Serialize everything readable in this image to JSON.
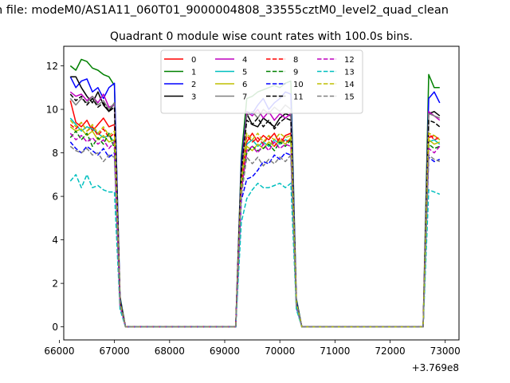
{
  "figure": {
    "suptitle": "n file: modeM0/AS1A11_060T01_9000004808_33555cztM0_level2_quad_clean"
  },
  "chart_data": {
    "type": "line",
    "title": "Quadrant 0 module wise count rates with 100.0s bins.",
    "xlabel": "",
    "ylabel": "",
    "x_offset_label": "+3.769e8",
    "xlim": [
      66080,
      73250
    ],
    "ylim": [
      -0.6,
      12.9
    ],
    "x_ticks": [
      66000,
      67000,
      68000,
      69000,
      70000,
      71000,
      72000,
      73000
    ],
    "y_ticks": [
      0,
      2,
      4,
      6,
      8,
      10,
      12
    ],
    "grid": false,
    "legend": {
      "placement": "top-center",
      "ncol": 4
    },
    "x": [
      66200,
      66300,
      66400,
      66500,
      66600,
      66700,
      66800,
      66900,
      67000,
      67100,
      67200,
      67300,
      67400,
      67500,
      67600,
      67700,
      67800,
      67900,
      68000,
      68100,
      68200,
      68300,
      68400,
      68500,
      68600,
      68700,
      68800,
      68900,
      69000,
      69100,
      69200,
      69300,
      69400,
      69500,
      69600,
      69700,
      69800,
      69900,
      70000,
      70100,
      70200,
      70300,
      70400,
      70500,
      70600,
      70700,
      70800,
      70900,
      71000,
      71100,
      71200,
      71300,
      71400,
      71500,
      71600,
      71700,
      71800,
      71900,
      72000,
      72100,
      72200,
      72300,
      72400,
      72500,
      72600,
      72700,
      72800,
      72900
    ],
    "series": [
      {
        "name": "0",
        "color": "#ff0000",
        "dash": "solid",
        "values": [
          10.4,
          9.4,
          9.2,
          9.5,
          9.0,
          9.3,
          9.6,
          9.2,
          9.3,
          1.2,
          0,
          0,
          0,
          0,
          0,
          0,
          0,
          0,
          0,
          0,
          0,
          0,
          0,
          0,
          0,
          0,
          0,
          0,
          0,
          0,
          0,
          6.5,
          8.5,
          8.9,
          8.5,
          8.8,
          8.6,
          8.9,
          8.4,
          8.8,
          8.9,
          1.0,
          0,
          0,
          0,
          0,
          0,
          0,
          0,
          0,
          0,
          0,
          0,
          0,
          0,
          0,
          0,
          0,
          0,
          0,
          0,
          0,
          0,
          0,
          0,
          8.7,
          8.8,
          8.6
        ]
      },
      {
        "name": "1",
        "color": "#008000",
        "dash": "solid",
        "values": [
          12.0,
          11.8,
          12.3,
          12.2,
          11.9,
          11.8,
          11.6,
          11.5,
          11.1,
          1.4,
          0,
          0,
          0,
          0,
          0,
          0,
          0,
          0,
          0,
          0,
          0,
          0,
          0,
          0,
          0,
          0,
          0,
          0,
          0,
          0,
          0,
          7.8,
          10.5,
          10.6,
          10.8,
          10.9,
          11.0,
          11.1,
          11.0,
          11.2,
          11.3,
          1.3,
          0,
          0,
          0,
          0,
          0,
          0,
          0,
          0,
          0,
          0,
          0,
          0,
          0,
          0,
          0,
          0,
          0,
          0,
          0,
          0,
          0,
          0,
          0,
          11.6,
          11.0,
          11.0
        ]
      },
      {
        "name": "2",
        "color": "#0000ff",
        "dash": "solid",
        "values": [
          11.5,
          11.0,
          11.3,
          11.4,
          10.8,
          11.0,
          10.5,
          11.0,
          11.2,
          1.3,
          0,
          0,
          0,
          0,
          0,
          0,
          0,
          0,
          0,
          0,
          0,
          0,
          0,
          0,
          0,
          0,
          0,
          0,
          0,
          0,
          0,
          7.5,
          9.9,
          9.8,
          10.2,
          10.5,
          10.0,
          10.3,
          10.5,
          10.8,
          10.7,
          1.2,
          0,
          0,
          0,
          0,
          0,
          0,
          0,
          0,
          0,
          0,
          0,
          0,
          0,
          0,
          0,
          0,
          0,
          0,
          0,
          0,
          0,
          0,
          0,
          10.5,
          10.8,
          10.3
        ]
      },
      {
        "name": "3",
        "color": "#000000",
        "dash": "solid",
        "values": [
          11.5,
          11.5,
          11.0,
          10.6,
          10.3,
          10.8,
          10.2,
          9.9,
          10.3,
          1.2,
          0,
          0,
          0,
          0,
          0,
          0,
          0,
          0,
          0,
          0,
          0,
          0,
          0,
          0,
          0,
          0,
          0,
          0,
          0,
          0,
          0,
          7.2,
          9.8,
          9.3,
          9.2,
          9.6,
          9.4,
          9.2,
          9.6,
          9.8,
          9.7,
          1.1,
          0,
          0,
          0,
          0,
          0,
          0,
          0,
          0,
          0,
          0,
          0,
          0,
          0,
          0,
          0,
          0,
          0,
          0,
          0,
          0,
          0,
          0,
          0,
          9.8,
          9.9,
          9.7
        ]
      },
      {
        "name": "4",
        "color": "#bf00bf",
        "dash": "solid",
        "values": [
          10.8,
          10.6,
          10.7,
          10.4,
          10.6,
          10.3,
          10.7,
          10.1,
          10.2,
          1.2,
          0,
          0,
          0,
          0,
          0,
          0,
          0,
          0,
          0,
          0,
          0,
          0,
          0,
          0,
          0,
          0,
          0,
          0,
          0,
          0,
          0,
          7.1,
          9.9,
          9.7,
          10.0,
          9.6,
          9.9,
          9.5,
          9.8,
          9.6,
          9.8,
          1.1,
          0,
          0,
          0,
          0,
          0,
          0,
          0,
          0,
          0,
          0,
          0,
          0,
          0,
          0,
          0,
          0,
          0,
          0,
          0,
          0,
          0,
          0,
          0,
          9.9,
          9.7,
          9.5
        ]
      },
      {
        "name": "5",
        "color": "#00bfbf",
        "dash": "solid",
        "values": [
          9.6,
          9.3,
          9.0,
          9.2,
          9.1,
          8.9,
          8.7,
          8.8,
          8.5,
          1.1,
          0,
          0,
          0,
          0,
          0,
          0,
          0,
          0,
          0,
          0,
          0,
          0,
          0,
          0,
          0,
          0,
          0,
          0,
          0,
          0,
          0,
          6.4,
          8.4,
          8.6,
          8.3,
          8.5,
          8.3,
          8.6,
          8.4,
          8.6,
          8.5,
          1.0,
          0,
          0,
          0,
          0,
          0,
          0,
          0,
          0,
          0,
          0,
          0,
          0,
          0,
          0,
          0,
          0,
          0,
          0,
          0,
          0,
          0,
          0,
          0,
          8.5,
          8.6,
          8.4
        ]
      },
      {
        "name": "6",
        "color": "#bfbf00",
        "dash": "solid",
        "values": [
          9.2,
          9.0,
          9.1,
          8.8,
          9.0,
          8.6,
          8.8,
          8.5,
          8.6,
          1.1,
          0,
          0,
          0,
          0,
          0,
          0,
          0,
          0,
          0,
          0,
          0,
          0,
          0,
          0,
          0,
          0,
          0,
          0,
          0,
          0,
          0,
          6.3,
          8.3,
          8.1,
          8.4,
          8.2,
          8.5,
          8.3,
          8.6,
          8.4,
          8.7,
          1.0,
          0,
          0,
          0,
          0,
          0,
          0,
          0,
          0,
          0,
          0,
          0,
          0,
          0,
          0,
          0,
          0,
          0,
          0,
          0,
          0,
          0,
          0,
          0,
          8.6,
          8.4,
          8.5
        ]
      },
      {
        "name": "7",
        "color": "#808080",
        "dash": "solid",
        "values": [
          10.5,
          10.2,
          10.5,
          10.3,
          10.6,
          10.2,
          10.4,
          10.0,
          10.3,
          1.2,
          0,
          0,
          0,
          0,
          0,
          0,
          0,
          0,
          0,
          0,
          0,
          0,
          0,
          0,
          0,
          0,
          0,
          0,
          0,
          0,
          0,
          7.0,
          9.7,
          9.9,
          9.6,
          10.0,
          9.8,
          10.1,
          9.9,
          10.2,
          10.0,
          1.1,
          0,
          0,
          0,
          0,
          0,
          0,
          0,
          0,
          0,
          0,
          0,
          0,
          0,
          0,
          0,
          0,
          0,
          0,
          0,
          0,
          0,
          0,
          0,
          9.8,
          9.7,
          9.6
        ]
      },
      {
        "name": "8",
        "color": "#ff0000",
        "dash": "dashed",
        "values": [
          9.3,
          9.1,
          9.4,
          9.0,
          9.2,
          8.8,
          9.1,
          8.7,
          8.9,
          1.1,
          0,
          0,
          0,
          0,
          0,
          0,
          0,
          0,
          0,
          0,
          0,
          0,
          0,
          0,
          0,
          0,
          0,
          0,
          0,
          0,
          0,
          6.5,
          8.8,
          8.5,
          8.7,
          8.4,
          8.8,
          8.3,
          8.7,
          8.5,
          8.6,
          1.0,
          0,
          0,
          0,
          0,
          0,
          0,
          0,
          0,
          0,
          0,
          0,
          0,
          0,
          0,
          0,
          0,
          0,
          0,
          0,
          0,
          0,
          0,
          0,
          8.9,
          8.6,
          8.7
        ]
      },
      {
        "name": "9",
        "color": "#008000",
        "dash": "dashed",
        "values": [
          8.7,
          9.0,
          8.6,
          8.9,
          8.3,
          8.7,
          8.4,
          8.9,
          8.2,
          1.1,
          0,
          0,
          0,
          0,
          0,
          0,
          0,
          0,
          0,
          0,
          0,
          0,
          0,
          0,
          0,
          0,
          0,
          0,
          0,
          0,
          0,
          6.4,
          8.0,
          8.3,
          8.1,
          8.2,
          8.4,
          8.1,
          8.5,
          8.3,
          8.6,
          1.0,
          0,
          0,
          0,
          0,
          0,
          0,
          0,
          0,
          0,
          0,
          0,
          0,
          0,
          0,
          0,
          0,
          0,
          0,
          0,
          0,
          0,
          0,
          0,
          8.4,
          8.2,
          8.3
        ]
      },
      {
        "name": "10",
        "color": "#0000ff",
        "dash": "dashed",
        "values": [
          8.5,
          8.2,
          8.0,
          8.3,
          8.1,
          7.9,
          8.2,
          7.8,
          8.0,
          1.0,
          0,
          0,
          0,
          0,
          0,
          0,
          0,
          0,
          0,
          0,
          0,
          0,
          0,
          0,
          0,
          0,
          0,
          0,
          0,
          0,
          0,
          5.8,
          6.8,
          6.9,
          7.2,
          7.6,
          7.5,
          7.9,
          7.7,
          8.0,
          7.9,
          0.9,
          0,
          0,
          0,
          0,
          0,
          0,
          0,
          0,
          0,
          0,
          0,
          0,
          0,
          0,
          0,
          0,
          0,
          0,
          0,
          0,
          0,
          0,
          0,
          7.8,
          7.6,
          7.7
        ]
      },
      {
        "name": "11",
        "color": "#000000",
        "dash": "dashed",
        "values": [
          10.7,
          10.4,
          10.6,
          10.2,
          10.5,
          10.1,
          10.3,
          9.9,
          10.1,
          1.2,
          0,
          0,
          0,
          0,
          0,
          0,
          0,
          0,
          0,
          0,
          0,
          0,
          0,
          0,
          0,
          0,
          0,
          0,
          0,
          0,
          0,
          7.1,
          9.5,
          9.3,
          9.6,
          9.2,
          9.5,
          9.1,
          9.4,
          9.6,
          9.5,
          1.1,
          0,
          0,
          0,
          0,
          0,
          0,
          0,
          0,
          0,
          0,
          0,
          0,
          0,
          0,
          0,
          0,
          0,
          0,
          0,
          0,
          0,
          0,
          0,
          9.5,
          9.4,
          9.2
        ]
      },
      {
        "name": "12",
        "color": "#bf00bf",
        "dash": "dashed",
        "values": [
          8.9,
          8.6,
          8.8,
          8.5,
          8.7,
          8.4,
          8.6,
          8.2,
          8.5,
          1.0,
          0,
          0,
          0,
          0,
          0,
          0,
          0,
          0,
          0,
          0,
          0,
          0,
          0,
          0,
          0,
          0,
          0,
          0,
          0,
          0,
          0,
          6.2,
          8.1,
          8.3,
          8.0,
          8.4,
          8.1,
          8.5,
          8.2,
          8.4,
          8.3,
          1.0,
          0,
          0,
          0,
          0,
          0,
          0,
          0,
          0,
          0,
          0,
          0,
          0,
          0,
          0,
          0,
          0,
          0,
          0,
          0,
          0,
          0,
          0,
          0,
          8.2,
          8.0,
          8.3
        ]
      },
      {
        "name": "13",
        "color": "#00bfbf",
        "dash": "dashed",
        "values": [
          6.7,
          7.0,
          6.4,
          7.0,
          6.4,
          6.5,
          6.3,
          6.2,
          6.2,
          0.8,
          0,
          0,
          0,
          0,
          0,
          0,
          0,
          0,
          0,
          0,
          0,
          0,
          0,
          0,
          0,
          0,
          0,
          0,
          0,
          0,
          0,
          4.8,
          5.9,
          6.3,
          6.6,
          6.4,
          6.4,
          6.5,
          6.6,
          6.4,
          6.6,
          0.8,
          0,
          0,
          0,
          0,
          0,
          0,
          0,
          0,
          0,
          0,
          0,
          0,
          0,
          0,
          0,
          0,
          0,
          0,
          0,
          0,
          0,
          0,
          0,
          6.3,
          6.2,
          6.1
        ]
      },
      {
        "name": "14",
        "color": "#bfbf00",
        "dash": "dashed",
        "values": [
          9.5,
          9.2,
          9.4,
          9.0,
          9.3,
          8.9,
          9.2,
          8.8,
          9.0,
          1.1,
          0,
          0,
          0,
          0,
          0,
          0,
          0,
          0,
          0,
          0,
          0,
          0,
          0,
          0,
          0,
          0,
          0,
          0,
          0,
          0,
          0,
          6.6,
          8.9,
          8.6,
          8.9,
          8.5,
          8.8,
          8.6,
          8.9,
          8.7,
          8.8,
          1.1,
          0,
          0,
          0,
          0,
          0,
          0,
          0,
          0,
          0,
          0,
          0,
          0,
          0,
          0,
          0,
          0,
          0,
          0,
          0,
          0,
          0,
          0,
          0,
          8.9,
          8.8,
          8.6
        ]
      },
      {
        "name": "15",
        "color": "#808080",
        "dash": "dashed",
        "values": [
          8.3,
          8.1,
          8.0,
          8.2,
          7.9,
          8.0,
          7.6,
          7.9,
          7.8,
          1.0,
          0,
          0,
          0,
          0,
          0,
          0,
          0,
          0,
          0,
          0,
          0,
          0,
          0,
          0,
          0,
          0,
          0,
          0,
          0,
          0,
          0,
          6.0,
          7.8,
          7.5,
          7.8,
          7.4,
          7.7,
          7.5,
          7.8,
          7.6,
          7.9,
          1.0,
          0,
          0,
          0,
          0,
          0,
          0,
          0,
          0,
          0,
          0,
          0,
          0,
          0,
          0,
          0,
          0,
          0,
          0,
          0,
          0,
          0,
          0,
          0,
          7.9,
          7.7,
          7.6
        ]
      }
    ]
  }
}
